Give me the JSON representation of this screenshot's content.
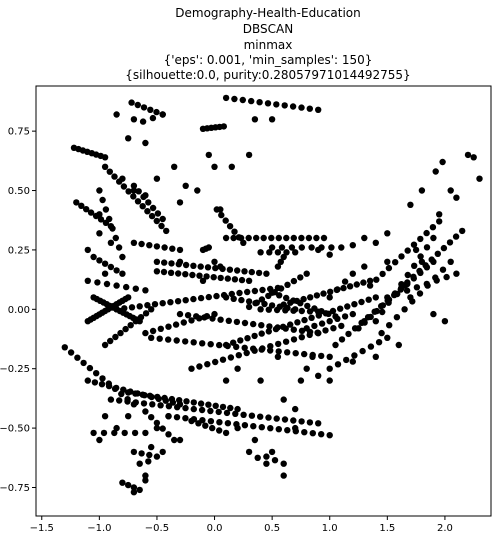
{
  "chart_data": {
    "type": "scatter",
    "title_lines": [
      "Demography-Health-Education",
      "DBSCAN",
      "minmax",
      "{'eps': 0.001, 'min_samples': 150}",
      "{silhouette:0.0, purity:0.28057971014492755}"
    ],
    "xlim": [
      -1.55,
      2.4
    ],
    "ylim": [
      -0.87,
      0.94
    ],
    "x_ticks": [
      -1.5,
      -1.0,
      -0.5,
      0.0,
      0.5,
      1.0,
      1.5,
      2.0
    ],
    "x_tick_labels": [
      "−1.5",
      "−1.0",
      "−0.5",
      "0.0",
      "0.5",
      "1.0",
      "1.5",
      "2.0"
    ],
    "y_ticks": [
      -0.75,
      -0.5,
      -0.25,
      0.0,
      0.25,
      0.5,
      0.75
    ],
    "y_tick_labels": [
      "−0.75",
      "−0.50",
      "−0.25",
      "0.00",
      "0.25",
      "0.50",
      "0.75"
    ],
    "grid": false,
    "marker_color": "#000000",
    "series": [
      {
        "segments": [
          [
            [
              -0.72,
              0.87
            ],
            [
              -0.45,
              0.82
            ],
            6
          ],
          [
            [
              -0.62,
              0.79
            ],
            [
              -0.45,
              0.82
            ],
            3
          ],
          [
            [
              0.08,
              0.77
            ],
            [
              -0.1,
              0.76
            ],
            6
          ],
          [
            [
              0.1,
              0.89
            ],
            [
              0.9,
              0.84
            ],
            12
          ],
          [
            [
              -1.22,
              0.68
            ],
            [
              -0.95,
              0.64
            ],
            8
          ],
          [
            [
              -0.95,
              0.6
            ],
            [
              -0.42,
              0.33
            ],
            14
          ],
          [
            [
              -0.7,
              0.52
            ],
            [
              -0.45,
              0.38
            ],
            7
          ],
          [
            [
              -1.2,
              0.45
            ],
            [
              -0.9,
              0.35
            ],
            8
          ],
          [
            [
              -1.0,
              0.5
            ],
            [
              -0.8,
              0.22
            ],
            8
          ],
          [
            [
              -0.7,
              0.28
            ],
            [
              -0.3,
              0.25
            ],
            7
          ],
          [
            [
              0.02,
              0.42
            ],
            [
              0.25,
              0.28
            ],
            7
          ],
          [
            [
              0.1,
              0.3
            ],
            [
              0.95,
              0.3
            ],
            14
          ],
          [
            [
              0.5,
              0.26
            ],
            [
              1.1,
              0.26
            ],
            8
          ],
          [
            [
              0.4,
              0.24
            ],
            [
              0.7,
              0.24
            ],
            5
          ],
          [
            [
              -0.05,
              0.26
            ],
            [
              -0.1,
              0.25
            ],
            3
          ],
          [
            [
              -0.5,
              0.2
            ],
            [
              0.45,
              0.15
            ],
            16
          ],
          [
            [
              -0.5,
              0.16
            ],
            [
              0.3,
              0.12
            ],
            14
          ],
          [
            [
              -1.05,
              0.22
            ],
            [
              -0.8,
              0.15
            ],
            6
          ],
          [
            [
              -1.1,
              0.12
            ],
            [
              -0.6,
              0.08
            ],
            7
          ],
          [
            [
              -1.05,
              0.05
            ],
            [
              -0.65,
              -0.05
            ],
            15
          ],
          [
            [
              -1.1,
              -0.05
            ],
            [
              -0.75,
              0.05
            ],
            15
          ],
          [
            [
              -0.95,
              -0.15
            ],
            [
              -0.55,
              0.0
            ],
            10
          ],
          [
            [
              -0.85,
              0.0
            ],
            [
              0.55,
              0.09
            ],
            22
          ],
          [
            [
              -0.6,
              -0.1
            ],
            [
              0.0,
              -0.02
            ],
            10
          ],
          [
            [
              0.1,
              0.05
            ],
            [
              0.7,
              0.0
            ],
            10
          ],
          [
            [
              -0.3,
              -0.02
            ],
            [
              0.9,
              -0.1
            ],
            18
          ],
          [
            [
              -0.55,
              -0.12
            ],
            [
              1.0,
              -0.2
            ],
            22
          ],
          [
            [
              -0.2,
              -0.25
            ],
            [
              1.1,
              -0.07
            ],
            20
          ],
          [
            [
              0.3,
              0.01
            ],
            [
              0.8,
              0.15
            ],
            10
          ],
          [
            [
              0.5,
              0.07
            ],
            [
              1.05,
              -0.03
            ],
            10
          ],
          [
            [
              0.6,
              0.02
            ],
            [
              1.35,
              0.12
            ],
            14
          ],
          [
            [
              0.1,
              -0.15
            ],
            [
              1.4,
              0.05
            ],
            22
          ],
          [
            [
              0.8,
              -0.08
            ],
            [
              1.2,
              -0.02
            ],
            7
          ],
          [
            [
              -1.3,
              -0.16
            ],
            [
              -0.7,
              -0.4
            ],
            12
          ],
          [
            [
              -1.1,
              -0.3
            ],
            [
              -0.3,
              -0.4
            ],
            14
          ],
          [
            [
              -0.75,
              -0.35
            ],
            [
              0.2,
              -0.42
            ],
            16
          ],
          [
            [
              -0.9,
              -0.38
            ],
            [
              0.9,
              -0.48
            ],
            26
          ],
          [
            [
              -0.4,
              -0.45
            ],
            [
              1.0,
              -0.53
            ],
            20
          ],
          [
            [
              -0.6,
              -0.43
            ],
            [
              -0.35,
              -0.55
            ],
            6
          ],
          [
            [
              -0.2,
              -0.47
            ],
            [
              0.1,
              -0.52
            ],
            6
          ],
          [
            [
              -0.7,
              -0.6
            ],
            [
              -0.5,
              -0.62
            ],
            4
          ],
          [
            [
              -1.05,
              -0.52
            ],
            [
              -0.6,
              -0.52
            ],
            6
          ],
          [
            [
              -0.55,
              -0.58
            ],
            [
              -0.6,
              -0.7
            ],
            3
          ],
          [
            [
              0.3,
              -0.6
            ],
            [
              0.45,
              -0.65
            ],
            3
          ],
          [
            [
              -0.8,
              -0.73
            ],
            [
              -0.65,
              -0.76
            ],
            4
          ],
          [
            [
              0.6,
              -0.65
            ],
            [
              0.45,
              -0.62
            ],
            3
          ],
          [
            [
              1.0,
              -0.25
            ],
            [
              1.5,
              -0.12
            ],
            8
          ],
          [
            [
              1.05,
              -0.15
            ],
            [
              1.9,
              0.2
            ],
            16
          ],
          [
            [
              1.25,
              -0.08
            ],
            [
              2.15,
              0.33
            ],
            18
          ],
          [
            [
              1.4,
              -0.05
            ],
            [
              1.9,
              0.3
            ],
            10
          ],
          [
            [
              1.35,
              0.1
            ],
            [
              1.95,
              0.37
            ],
            12
          ],
          [
            [
              1.5,
              0.05
            ],
            [
              2.1,
              0.15
            ],
            8
          ],
          [
            [
              1.45,
              -0.1
            ],
            [
              2.05,
              0.2
            ],
            10
          ],
          [
            [
              0.6,
              0.22
            ],
            [
              0.55,
              0.18
            ],
            3
          ],
          [
            [
              0.4,
              0.0
            ],
            [
              0.9,
              -0.01
            ],
            8
          ],
          [
            [
              1.0,
              0.05
            ],
            [
              1.2,
              0.15
            ],
            4
          ],
          [
            [
              1.7,
              0.05
            ],
            [
              1.65,
              0.1
            ],
            2
          ],
          [
            [
              2.0,
              -0.05
            ],
            [
              1.9,
              -0.02
            ],
            2
          ],
          [
            [
              0.0,
              0.2
            ],
            [
              0.05,
              0.18
            ],
            2
          ]
        ],
        "extra_points": [
          [
            0.0,
            0.6
          ],
          [
            -0.05,
            0.65
          ],
          [
            0.15,
            0.6
          ],
          [
            -0.15,
            0.5
          ],
          [
            -0.3,
            0.45
          ],
          [
            -0.25,
            0.52
          ],
          [
            -0.35,
            0.6
          ],
          [
            0.3,
            0.65
          ],
          [
            0.05,
            0.42
          ],
          [
            1.0,
            0.23
          ],
          [
            0.9,
            0.25
          ],
          [
            1.2,
            0.27
          ],
          [
            1.3,
            0.3
          ],
          [
            1.4,
            0.28
          ],
          [
            1.5,
            0.32
          ],
          [
            1.7,
            0.44
          ],
          [
            1.8,
            0.5
          ],
          [
            1.92,
            0.58
          ],
          [
            1.98,
            0.62
          ],
          [
            2.2,
            0.65
          ],
          [
            2.25,
            0.64
          ],
          [
            2.05,
            0.5
          ],
          [
            2.1,
            0.47
          ],
          [
            2.3,
            0.55
          ],
          [
            1.95,
            0.4
          ],
          [
            1.8,
            0.2
          ],
          [
            1.75,
            0.25
          ],
          [
            1.5,
            0.2
          ],
          [
            1.3,
            0.18
          ],
          [
            -1.0,
            0.32
          ],
          [
            -0.9,
            0.28
          ],
          [
            -1.0,
            0.4
          ],
          [
            -0.8,
            0.55
          ],
          [
            -0.7,
            0.5
          ],
          [
            -0.6,
            0.48
          ],
          [
            -0.5,
            0.55
          ],
          [
            -1.1,
            0.25
          ],
          [
            -0.95,
            0.15
          ],
          [
            -0.3,
            0.2
          ],
          [
            -0.1,
            0.12
          ],
          [
            0.2,
            -0.25
          ],
          [
            0.1,
            -0.3
          ],
          [
            0.4,
            -0.3
          ],
          [
            0.6,
            -0.38
          ],
          [
            0.7,
            -0.42
          ],
          [
            0.8,
            -0.25
          ],
          [
            0.75,
            -0.3
          ],
          [
            0.55,
            -0.2
          ],
          [
            0.9,
            -0.1
          ],
          [
            0.9,
            -0.28
          ],
          [
            0.85,
            -0.2
          ],
          [
            1.0,
            -0.3
          ],
          [
            1.2,
            -0.22
          ],
          [
            1.4,
            -0.2
          ],
          [
            1.6,
            -0.15
          ],
          [
            1.3,
            -0.05
          ],
          [
            0.2,
            -0.5
          ],
          [
            0.35,
            -0.55
          ],
          [
            0.5,
            -0.6
          ],
          [
            0.6,
            -0.7
          ],
          [
            0.7,
            -0.5
          ],
          [
            -0.65,
            -0.65
          ],
          [
            -0.4,
            -0.45
          ],
          [
            -0.5,
            -0.5
          ],
          [
            -0.45,
            -0.6
          ],
          [
            -0.3,
            -0.55
          ],
          [
            -1.0,
            -0.55
          ],
          [
            -0.95,
            -0.45
          ],
          [
            -0.85,
            -0.5
          ],
          [
            -0.75,
            -0.45
          ],
          [
            -0.7,
            -0.77
          ],
          [
            -0.6,
            -0.72
          ],
          [
            0.35,
            0.8
          ],
          [
            0.5,
            0.8
          ],
          [
            -0.85,
            0.82
          ],
          [
            -0.7,
            0.8
          ],
          [
            -0.75,
            0.72
          ],
          [
            -0.6,
            0.7
          ]
        ]
      }
    ]
  }
}
